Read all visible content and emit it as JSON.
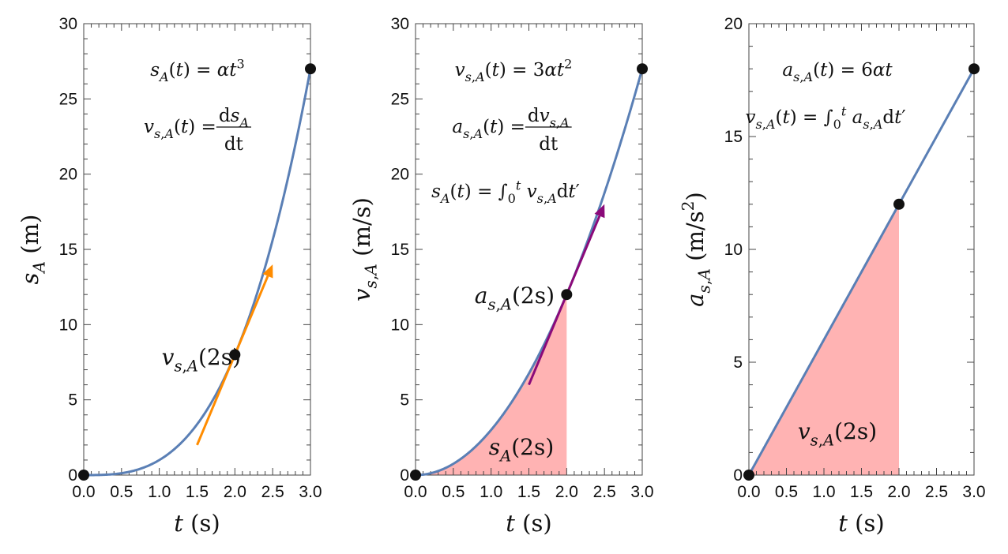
{
  "chart_data": [
    {
      "type": "line",
      "xlabel": "t [(s)]",
      "ylabel": "s_{A} [(m)]",
      "xlim": [
        0,
        3
      ],
      "ylim": [
        0,
        30
      ],
      "xticks": [
        "0.0",
        "0.5",
        "1.0",
        "1.5",
        "2.0",
        "2.5",
        "3.0"
      ],
      "yticks": [
        "0",
        "5",
        "10",
        "15",
        "20",
        "25",
        "30"
      ],
      "curve": {
        "formula": "t^3",
        "color": "#5a7fb5"
      },
      "points": [
        {
          "x": 0,
          "y": 0
        },
        {
          "x": 2,
          "y": 8
        },
        {
          "x": 3,
          "y": 27
        }
      ],
      "tangent_arrow": {
        "from": {
          "x": 1.5,
          "y": 2
        },
        "to": {
          "x": 2.5,
          "y": 14
        },
        "color": "#ff8c00"
      },
      "shaded_area": null,
      "annotations": [
        {
          "text": "s_{A}(t) = αt^{3}"
        },
        {
          "lhs": "v_{s,A}(t) = ",
          "num": "[d]s_{A}",
          "den": "[dt]"
        },
        {
          "text": "v_{s,A}([2s])"
        }
      ]
    },
    {
      "type": "line",
      "xlabel": "t [(s)]",
      "ylabel": "v_{s,A} [(m/s)]",
      "xlim": [
        0,
        3
      ],
      "ylim": [
        0,
        30
      ],
      "xticks": [
        "0.0",
        "0.5",
        "1.0",
        "1.5",
        "2.0",
        "2.5",
        "3.0"
      ],
      "yticks": [
        "0",
        "5",
        "10",
        "15",
        "20",
        "25",
        "30"
      ],
      "curve": {
        "formula": "3t^2",
        "color": "#5a7fb5"
      },
      "points": [
        {
          "x": 0,
          "y": 0
        },
        {
          "x": 2,
          "y": 12
        },
        {
          "x": 3,
          "y": 27
        }
      ],
      "tangent_arrow": {
        "from": {
          "x": 1.5,
          "y": 6
        },
        "to": {
          "x": 2.5,
          "y": 18
        },
        "color": "#8b0a7a"
      },
      "shaded_area": {
        "from": 0,
        "to": 2,
        "color": "#ffb3b3"
      },
      "annotations": [
        {
          "text": "v_{s,A}(t) = 3αt^{2}"
        },
        {
          "lhs": "a_{s,A}(t) = ",
          "num": "[d]v_{s,A}",
          "den": "[dt]"
        },
        {
          "text": "s_{A}(t) = ∫_{0}^{t} v_{s,A}[d]t′"
        },
        {
          "text": "a_{s,A}([2s])"
        },
        {
          "text": "s_{A}([2s])"
        }
      ]
    },
    {
      "type": "line",
      "xlabel": "t [(s)]",
      "ylabel": "a_{s,A} [(m/s]^{2}[)]",
      "xlim": [
        0,
        3
      ],
      "ylim": [
        0,
        20
      ],
      "xticks": [
        "0.0",
        "0.5",
        "1.0",
        "1.5",
        "2.0",
        "2.5",
        "3.0"
      ],
      "yticks": [
        "0",
        "5",
        "10",
        "15",
        "20"
      ],
      "curve": {
        "formula": "6t",
        "color": "#5a7fb5"
      },
      "points": [
        {
          "x": 0,
          "y": 0
        },
        {
          "x": 2,
          "y": 12
        },
        {
          "x": 3,
          "y": 18
        }
      ],
      "tangent_arrow": null,
      "shaded_area": {
        "from": 0,
        "to": 2,
        "color": "#ffb3b3"
      },
      "annotations": [
        {
          "text": "a_{s,A}(t) = 6αt"
        },
        {
          "text": "v_{s,A}(t) = ∫_{0}^{t} a_{s,A}[d]t′"
        },
        {
          "text": "v_{s,A}([2s])"
        }
      ]
    }
  ]
}
